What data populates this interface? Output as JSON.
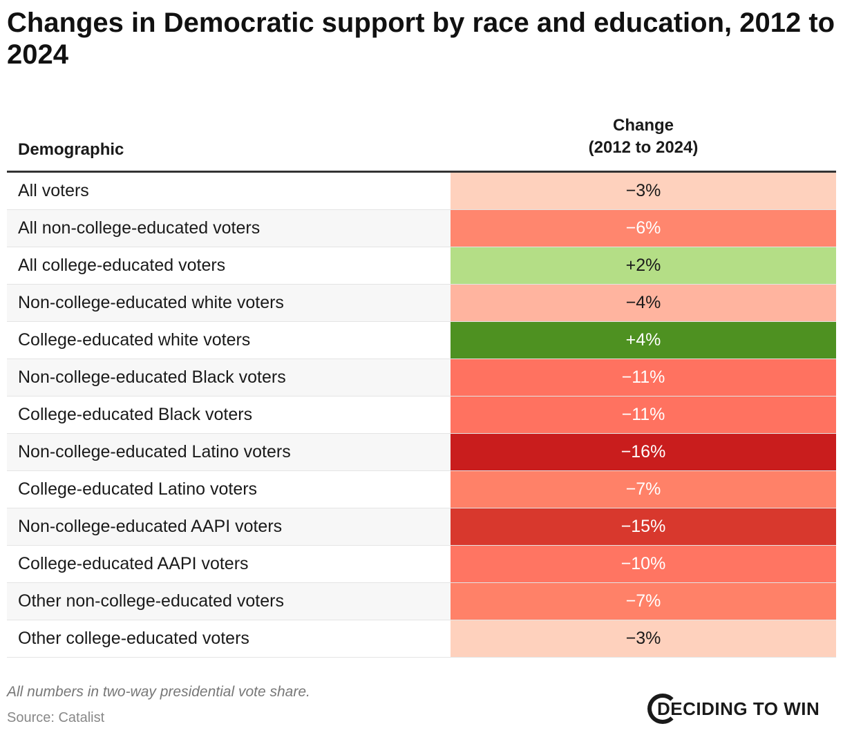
{
  "chart_data": {
    "type": "table",
    "title": "Changes in Democratic support by race and education, 2012 to 2024",
    "columns": [
      "Demographic",
      "Change\n(2012 to 2024)"
    ],
    "rows": [
      {
        "label": "All voters",
        "value": -3,
        "text": "−3%",
        "color": "#fed1bd",
        "fg": "#1a1a1a"
      },
      {
        "label": "All non-college-educated voters",
        "value": -6,
        "text": "−6%",
        "color": "#ff866e",
        "fg": "#ffffff"
      },
      {
        "label": "All college-educated voters",
        "value": 2,
        "text": "+2%",
        "color": "#b4de86",
        "fg": "#1a1a1a"
      },
      {
        "label": "Non-college-educated white voters",
        "value": -4,
        "text": "−4%",
        "color": "#ffb49f",
        "fg": "#1a1a1a"
      },
      {
        "label": "College-educated white voters",
        "value": 4,
        "text": "+4%",
        "color": "#4e9121",
        "fg": "#ffffff"
      },
      {
        "label": "Non-college-educated Black voters",
        "value": -11,
        "text": "−11%",
        "color": "#ff7260",
        "fg": "#ffffff"
      },
      {
        "label": "College-educated Black voters",
        "value": -11,
        "text": "−11%",
        "color": "#ff7260",
        "fg": "#ffffff"
      },
      {
        "label": "Non-college-educated Latino voters",
        "value": -16,
        "text": "−16%",
        "color": "#c91d1d",
        "fg": "#ffffff"
      },
      {
        "label": "College-educated Latino voters",
        "value": -7,
        "text": "−7%",
        "color": "#ff8168",
        "fg": "#ffffff"
      },
      {
        "label": "Non-college-educated AAPI voters",
        "value": -15,
        "text": "−15%",
        "color": "#d8382d",
        "fg": "#ffffff"
      },
      {
        "label": "College-educated AAPI voters",
        "value": -10,
        "text": "−10%",
        "color": "#ff7562",
        "fg": "#ffffff"
      },
      {
        "label": "Other non-college-educated voters",
        "value": -7,
        "text": "−7%",
        "color": "#ff8168",
        "fg": "#ffffff"
      },
      {
        "label": "Other college-educated voters",
        "value": -3,
        "text": "−3%",
        "color": "#fed1bd",
        "fg": "#1a1a1a"
      }
    ]
  },
  "footer": {
    "note": "All numbers in two-way presidential vote share.",
    "source": "Source: Catalist",
    "logo": "DECIDING TO WIN"
  }
}
